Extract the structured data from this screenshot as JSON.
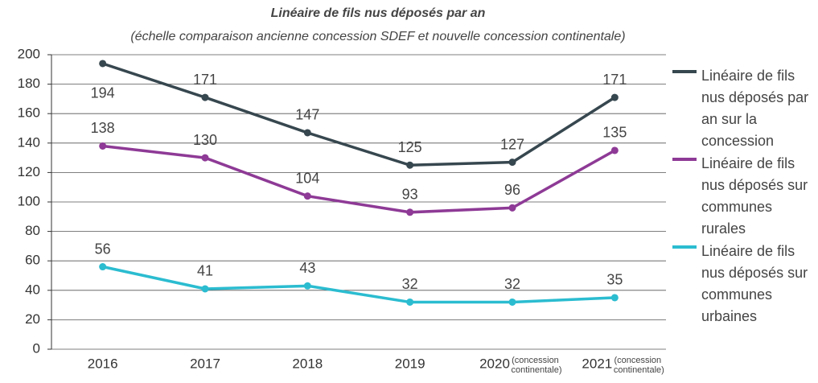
{
  "chart_data": {
    "type": "line",
    "title": "Linéaire de fils nus déposés par an",
    "subtitle": "(échelle comparaison ancienne concession SDEF  et nouvelle concession continentale)",
    "categories": [
      "2016",
      "2017",
      "2018",
      "2019",
      "2020",
      "2021"
    ],
    "category_notes": [
      null,
      null,
      null,
      null,
      "(concession continentale)",
      "(concession continentale)"
    ],
    "series": [
      {
        "name": "Linéaire de fils nus déposés par an sur la concession",
        "color": "#37474f",
        "values": [
          194,
          171,
          147,
          125,
          127,
          171
        ]
      },
      {
        "name": "Linéaire de fils nus déposés sur communes rurales",
        "color": "#8e3a96",
        "values": [
          138,
          130,
          104,
          93,
          96,
          135
        ]
      },
      {
        "name": "Linéaire de fils nus déposés sur communes urbaines",
        "color": "#2bbcd0",
        "values": [
          56,
          41,
          43,
          32,
          32,
          35
        ]
      }
    ],
    "ylim": [
      0,
      200
    ],
    "yticks": [
      0,
      20,
      40,
      60,
      80,
      100,
      120,
      140,
      160,
      180,
      200
    ],
    "grid": true,
    "legend": "right"
  }
}
